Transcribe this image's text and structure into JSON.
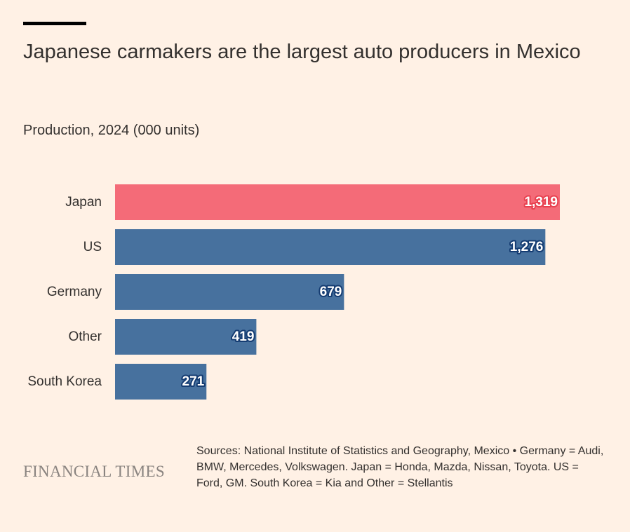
{
  "page": {
    "title": "Japanese carmakers are the largest auto producers in Mexico",
    "subtitle": "Production, 2024 (000 units)",
    "logo": "FINANCIAL TIMES",
    "source": "Sources: National Institute of Statistics and Geography, Mexico • Germany = Audi, BMW, Mercedes, Volkswagen. Japan = Honda, Mazda, Nissan, Toyota. US = Ford, GM. South Korea = Kia and Other = Stellantis"
  },
  "chart_data": {
    "type": "bar",
    "orientation": "horizontal",
    "title": "Japanese carmakers are the largest auto producers in Mexico",
    "subtitle": "Production, 2024 (000 units)",
    "xlabel": "",
    "ylabel": "",
    "xlim": [
      0,
      1319
    ],
    "grid": false,
    "categories": [
      "Japan",
      "US",
      "Germany",
      "Other",
      "South Korea"
    ],
    "values": [
      1319,
      1276,
      679,
      419,
      271
    ],
    "labels": [
      "1,319",
      "1,276",
      "679",
      "419",
      "271"
    ],
    "highlight_category": "Japan",
    "colors": {
      "highlight": "#f46b78",
      "highlight_label_outline": "#e8404f",
      "default": "#47719e",
      "default_label_outline": "#153c72",
      "label_text": "#ffffff",
      "category_text": "#33302e"
    }
  }
}
